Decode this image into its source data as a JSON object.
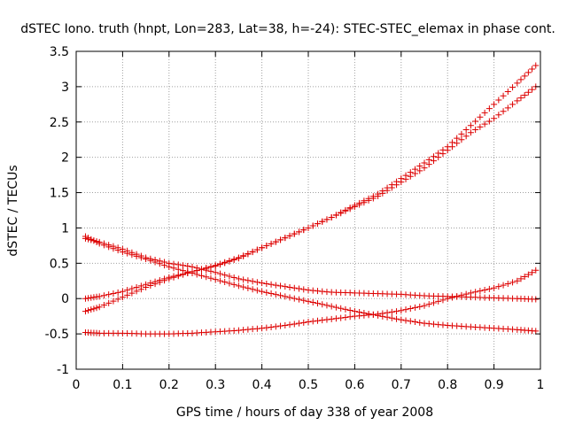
{
  "chart_data": {
    "type": "scatter",
    "title": "dSTEC Iono. truth (hnpt, Lon=283, Lat=38, h=-24): STEC-STEC_elemax in phase cont.",
    "xlabel": "GPS time / hours of day 338 of year 2008",
    "ylabel": "dSTEC  / TECUs",
    "xlim": [
      0,
      1
    ],
    "ylim": [
      -1,
      3.5
    ],
    "x_ticks": [
      "0",
      "0.1",
      "0.2",
      "0.3",
      "0.4",
      "0.5",
      "0.6",
      "0.7",
      "0.8",
      "0.9",
      "1"
    ],
    "y_ticks": [
      "-1",
      "-0.5",
      "0",
      "0.5",
      "1",
      "1.5",
      "2",
      "2.5",
      "3",
      "3.5"
    ],
    "grid": true,
    "marker": "+",
    "color": "#dd0000",
    "series": [
      {
        "x": [
          0.02,
          0.05,
          0.1,
          0.15,
          0.2,
          0.25,
          0.3,
          0.35,
          0.4,
          0.45,
          0.5,
          0.55,
          0.6,
          0.65,
          0.7,
          0.75,
          0.8,
          0.85,
          0.9,
          0.95,
          0.99
        ],
        "y": [
          0.0,
          0.03,
          0.1,
          0.2,
          0.3,
          0.38,
          0.46,
          0.57,
          0.72,
          0.86,
          1.0,
          1.15,
          1.3,
          1.45,
          1.65,
          1.85,
          2.1,
          2.35,
          2.55,
          2.8,
          3.0
        ]
      },
      {
        "x": [
          0.02,
          0.05,
          0.1,
          0.15,
          0.2,
          0.25,
          0.3,
          0.35,
          0.4,
          0.45,
          0.5,
          0.55,
          0.6,
          0.65,
          0.7,
          0.75,
          0.8,
          0.85,
          0.9,
          0.95,
          0.99
        ],
        "y": [
          -0.18,
          -0.12,
          0.02,
          0.16,
          0.28,
          0.38,
          0.47,
          0.58,
          0.72,
          0.86,
          1.0,
          1.15,
          1.32,
          1.48,
          1.7,
          1.92,
          2.15,
          2.45,
          2.75,
          3.05,
          3.3
        ]
      },
      {
        "x": [
          0.02,
          0.05,
          0.1,
          0.15,
          0.2,
          0.25,
          0.3,
          0.35,
          0.4,
          0.45,
          0.5,
          0.55,
          0.6,
          0.65,
          0.7,
          0.75,
          0.8,
          0.85,
          0.9,
          0.95,
          0.99
        ],
        "y": [
          0.88,
          0.78,
          0.66,
          0.56,
          0.45,
          0.36,
          0.27,
          0.18,
          0.1,
          0.03,
          -0.04,
          -0.11,
          -0.18,
          -0.24,
          -0.3,
          -0.35,
          -0.38,
          -0.4,
          -0.42,
          -0.44,
          -0.46
        ]
      },
      {
        "x": [
          0.02,
          0.05,
          0.1,
          0.15,
          0.2,
          0.25,
          0.3,
          0.35,
          0.4,
          0.45,
          0.5,
          0.55,
          0.6,
          0.65,
          0.7,
          0.75,
          0.8,
          0.85,
          0.9,
          0.95,
          0.99
        ],
        "y": [
          0.85,
          0.8,
          0.7,
          0.58,
          0.5,
          0.45,
          0.37,
          0.28,
          0.22,
          0.17,
          0.12,
          0.09,
          0.08,
          0.07,
          0.06,
          0.04,
          0.03,
          0.02,
          0.01,
          0.0,
          -0.01
        ]
      },
      {
        "x": [
          0.02,
          0.05,
          0.1,
          0.15,
          0.2,
          0.25,
          0.3,
          0.35,
          0.4,
          0.45,
          0.5,
          0.55,
          0.6,
          0.65,
          0.7,
          0.75,
          0.8,
          0.85,
          0.9,
          0.95,
          0.99
        ],
        "y": [
          -0.48,
          -0.49,
          -0.49,
          -0.5,
          -0.5,
          -0.49,
          -0.47,
          -0.45,
          -0.42,
          -0.38,
          -0.33,
          -0.29,
          -0.25,
          -0.22,
          -0.17,
          -0.1,
          0.0,
          0.08,
          0.15,
          0.25,
          0.4
        ]
      }
    ]
  }
}
